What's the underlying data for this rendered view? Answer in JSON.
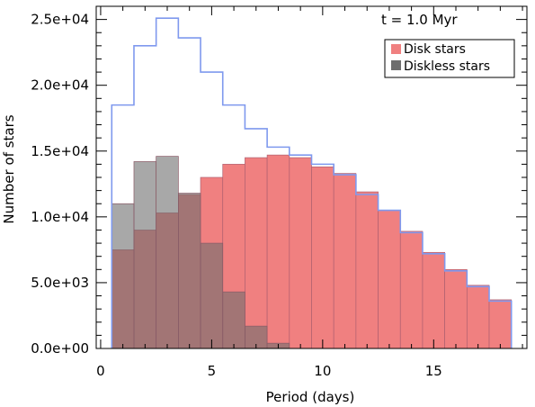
{
  "chart_data": {
    "type": "bar",
    "xlabel": "Period (days)",
    "ylabel": "Number of stars",
    "xlim": [
      -0.2,
      19.2
    ],
    "ylim": [
      0,
      26000
    ],
    "annotation": "t =  1.0 Myr",
    "legend_position": "top-right",
    "bin_edges": [
      0.5,
      1.5,
      2.5,
      3.5,
      4.5,
      5.5,
      6.5,
      7.5,
      8.5,
      9.5,
      10.5,
      11.5,
      12.5,
      13.5,
      14.5,
      15.5,
      16.5,
      17.5,
      18.5
    ],
    "x_ticks": [
      {
        "value": 0,
        "label": "0"
      },
      {
        "value": 5,
        "label": "5"
      },
      {
        "value": 10,
        "label": "10"
      },
      {
        "value": 15,
        "label": "15"
      }
    ],
    "y_ticks": [
      {
        "value": 0,
        "label": "0.0e+00"
      },
      {
        "value": 5000,
        "label": "5.0e+03"
      },
      {
        "value": 10000,
        "label": "1.0e+04"
      },
      {
        "value": 15000,
        "label": "1.5e+04"
      },
      {
        "value": 20000,
        "label": "2.0e+04"
      },
      {
        "value": 25000,
        "label": "2.5e+04"
      }
    ],
    "series": [
      {
        "name": "Disk stars",
        "color": "#f08080",
        "values": [
          7500,
          9000,
          10300,
          11700,
          13000,
          14000,
          14500,
          14700,
          14500,
          13800,
          13300,
          11900,
          10500,
          8900,
          7300,
          6000,
          4800,
          3700
        ]
      },
      {
        "name": "Diskless stars",
        "color": "#6e6e6e",
        "values": [
          11000,
          14200,
          14600,
          11800,
          8000,
          4300,
          1700,
          400,
          0,
          0,
          0,
          0,
          0,
          0,
          0,
          0,
          0,
          0
        ]
      },
      {
        "color": "#7f99ee",
        "values": [
          18500,
          23000,
          25100,
          23600,
          21000,
          18500,
          16700,
          15300,
          14700,
          14000,
          13200,
          11700,
          10500,
          8800,
          7200,
          5900,
          4700,
          3600
        ]
      }
    ]
  }
}
